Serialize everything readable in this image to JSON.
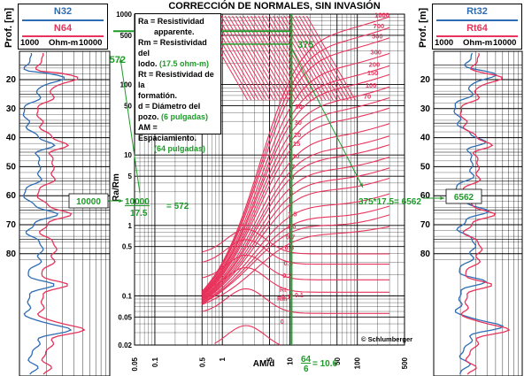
{
  "title": "CORRECCIÓN DE NORMALES, SIN INVASIÓN",
  "left_track": {
    "curve1": "N32",
    "curve2": "N64",
    "scale_left": "1000",
    "scale_mid": "Ohm-m",
    "scale_right": "10000",
    "depth_label": "Prof. [m]",
    "depths": [
      "20",
      "30",
      "40",
      "50",
      "60",
      "70",
      "80"
    ],
    "callout": "10000"
  },
  "right_track": {
    "curve1": "Rt32",
    "curve2": "Rt64",
    "scale_left": "1000",
    "scale_mid": "Ohm-m",
    "scale_right": "10000",
    "depth_label": "Prof. [m]",
    "depths": [
      "20",
      "30",
      "40",
      "50",
      "60",
      "70",
      "80"
    ],
    "callout": "6562"
  },
  "legend": {
    "l1": "Ra = Resistividad",
    "l2": "apparente.",
    "l3": "Rm = Resistividad del",
    "l4": "lodo. ",
    "l4g": "(17.5 ohm-m)",
    "l5": "Rt = Resistividad de la",
    "l6": "formatión.",
    "l7": "d = Diámetro del",
    "l8": "pozo. ",
    "l8g": "(6 pulgadas)",
    "l9": "AM = Espaciamiento.",
    "l10g": "(64 pulgadas)"
  },
  "annotations": {
    "ratio_num": "10000",
    "ratio_den": "17.5",
    "ratio_result": "= 572",
    "top_572": "572",
    "top_375": "375",
    "calc_right": "375*17.5= 6562",
    "x_num": "64",
    "x_den": "6",
    "x_result": "= 10.6",
    "copyright": "© Schlumberger",
    "rt_rm_1": "Rt",
    "rt_rm_2": "Rm",
    "rt_rm_val": "= 0.1"
  },
  "colors": {
    "blue": "#2e6db4",
    "red": "#e8335c",
    "green": "#1f9a2a",
    "grid": "#000000"
  },
  "chart_data": {
    "type": "line",
    "title": "CORRECCIÓN DE NORMALES, SIN INVASIÓN",
    "xlabel": "AM/d",
    "ylabel": "Ra/Rm",
    "xscale": "log",
    "yscale": "log",
    "xlim": [
      0.05,
      500
    ],
    "ylim": [
      0.02,
      1000
    ],
    "x_ticks": [
      "0.05",
      "0.1",
      "0.5",
      "1",
      "5",
      "10",
      "50",
      "100",
      "500"
    ],
    "y_ticks": [
      "0.02",
      "0.05",
      "0.1",
      "0.5",
      "1",
      "5",
      "10",
      "50",
      "100",
      "500",
      "1000"
    ],
    "curve_labels": [
      "1000",
      "700",
      "500",
      "300",
      "200",
      "150",
      "100",
      "70",
      "50",
      "30",
      "20",
      "15",
      "10",
      "7",
      "5",
      "3",
      "2",
      "1.5",
      "1.0",
      "0.7",
      "0.5",
      "0.3",
      "0.2",
      "0.1",
      "0"
    ],
    "worked_example": {
      "x": 10.6,
      "Ra_Rm": 572,
      "Rt_Rm": 375,
      "Rt": 6562
    }
  }
}
